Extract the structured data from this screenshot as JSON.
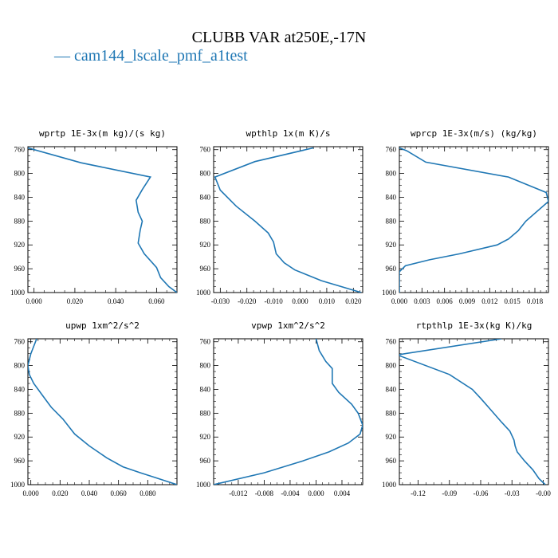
{
  "figure": {
    "title": "CLUBB VAR at250E,-17N",
    "legend": "— cam144_lscale_pmf_a1test",
    "line_color": "#1f77b4"
  },
  "chart_data": [
    {
      "type": "line",
      "title": "wprtp  1E-3x(m kg)/(s kg)",
      "xlim": [
        -0.003,
        0.07
      ],
      "ylim": [
        1000,
        755
      ],
      "yticks": [
        760,
        800,
        840,
        880,
        920,
        960,
        1000
      ],
      "xticks": [
        0.0,
        0.02,
        0.04,
        0.06
      ],
      "xticklabels": [
        "0.000",
        "0.020",
        "0.040",
        "0.060"
      ],
      "series": [
        {
          "x": [
            -0.003,
            0.023,
            0.057,
            0.053,
            0.05,
            0.051,
            0.053,
            0.052,
            0.051,
            0.054,
            0.06,
            0.062,
            0.066,
            0.07
          ],
          "y": [
            757,
            782,
            806,
            827,
            845,
            865,
            880,
            895,
            917,
            935,
            958,
            975,
            990,
            1000
          ]
        }
      ]
    },
    {
      "type": "line",
      "title": "wpthlp  1x(m K)/s",
      "xlim": [
        -0.0325,
        0.0235
      ],
      "ylim": [
        1000,
        755
      ],
      "yticks": [
        760,
        800,
        840,
        880,
        920,
        960,
        1000
      ],
      "xticks": [
        -0.03,
        -0.02,
        -0.01,
        0.0,
        0.01,
        0.02
      ],
      "xticklabels": [
        "-0.030",
        "-0.020",
        "-0.010",
        "0.000",
        "0.010",
        "0.020"
      ],
      "series": [
        {
          "x": [
            0.005,
            -0.017,
            -0.032,
            -0.03,
            -0.024,
            -0.017,
            -0.012,
            -0.01,
            -0.009,
            -0.006,
            -0.002,
            0.008,
            0.023
          ],
          "y": [
            757,
            780,
            806,
            828,
            855,
            880,
            900,
            915,
            935,
            950,
            962,
            980,
            1000
          ]
        }
      ]
    },
    {
      "type": "line",
      "title": "wprcp  1E-3x(m/s) (kg/kg)",
      "xlim": [
        0.0,
        0.0198
      ],
      "ylim": [
        1000,
        755
      ],
      "yticks": [
        760,
        800,
        840,
        880,
        920,
        960,
        1000
      ],
      "xticks": [
        0.0,
        0.003,
        0.006,
        0.009,
        0.012,
        0.015,
        0.018
      ],
      "xticklabels": [
        "0.000",
        "0.003",
        "0.006",
        "0.009",
        "0.012",
        "0.015",
        "0.018"
      ],
      "series": [
        {
          "x": [
            0.0,
            0.001,
            0.0035,
            0.0145,
            0.0195,
            0.0198,
            0.0168,
            0.0158,
            0.0145,
            0.013,
            0.008,
            0.004,
            0.0008,
            0.0,
            0.0
          ],
          "y": [
            757,
            762,
            781,
            806,
            832,
            847,
            880,
            896,
            910,
            920,
            935,
            945,
            955,
            965,
            1000
          ]
        }
      ]
    },
    {
      "type": "line",
      "title": "upwp  1xm^2/s^2",
      "xlim": [
        -0.002,
        0.1
      ],
      "ylim": [
        1000,
        755
      ],
      "yticks": [
        760,
        800,
        840,
        880,
        920,
        960,
        1000
      ],
      "xticks": [
        0.0,
        0.02,
        0.04,
        0.06,
        0.08
      ],
      "xticklabels": [
        "0.000",
        "0.020",
        "0.040",
        "0.060",
        "0.080"
      ],
      "series": [
        {
          "x": [
            0.004,
            0.0,
            -0.002,
            -0.001,
            0.002,
            0.008,
            0.014,
            0.022,
            0.03,
            0.04,
            0.052,
            0.063,
            0.075,
            0.085,
            0.1
          ],
          "y": [
            755,
            780,
            800,
            815,
            830,
            850,
            870,
            890,
            915,
            935,
            955,
            970,
            980,
            988,
            1000
          ]
        }
      ]
    },
    {
      "type": "line",
      "title": "vpwp  1xm^2/s^2",
      "xlim": [
        -0.0158,
        0.0072
      ],
      "ylim": [
        1000,
        755
      ],
      "yticks": [
        760,
        800,
        840,
        880,
        920,
        960,
        1000
      ],
      "xticks": [
        -0.012,
        -0.008,
        -0.004,
        0.0,
        0.004
      ],
      "xticklabels": [
        "-0.012",
        "-0.008",
        "-0.004",
        "0.000",
        "0.004"
      ],
      "series": [
        {
          "x": [
            0.0,
            0.0005,
            0.0015,
            0.0025,
            0.0025,
            0.0035,
            0.0055,
            0.0065,
            0.0072,
            0.0068,
            0.005,
            0.002,
            -0.002,
            -0.008,
            -0.0158
          ],
          "y": [
            755,
            775,
            793,
            805,
            830,
            845,
            865,
            880,
            900,
            915,
            930,
            945,
            960,
            980,
            1000
          ]
        }
      ]
    },
    {
      "type": "line",
      "title": "rtpthlp  1E-3x(kg K)/kg",
      "xlim": [
        -0.138,
        0.005
      ],
      "ylim": [
        1000,
        755
      ],
      "yticks": [
        760,
        800,
        840,
        880,
        920,
        960,
        1000
      ],
      "xticks": [
        -0.12,
        -0.09,
        -0.06,
        -0.03,
        0.0
      ],
      "xticklabels": [
        "-0.12",
        "-0.09",
        "-0.06",
        "-0.03",
        "-0.00"
      ],
      "series": [
        {
          "x": [
            -0.04,
            -0.14,
            -0.09,
            -0.068,
            -0.06,
            -0.05,
            -0.04,
            -0.032,
            -0.028,
            -0.027,
            -0.025,
            -0.018,
            -0.01,
            -0.004,
            0.002
          ],
          "y": [
            755,
            782,
            815,
            840,
            855,
            875,
            895,
            910,
            925,
            935,
            945,
            960,
            975,
            990,
            1000
          ]
        }
      ]
    }
  ]
}
